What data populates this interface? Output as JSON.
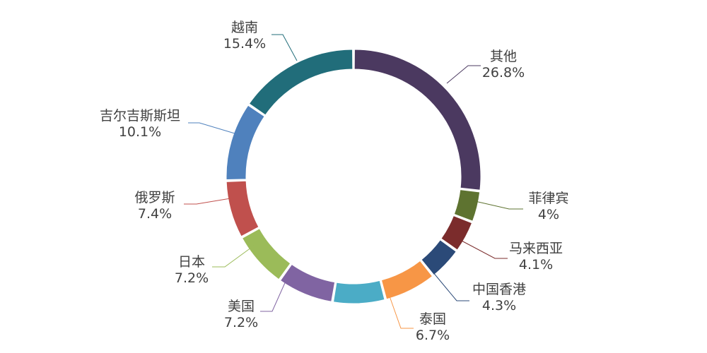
{
  "chart_data": {
    "type": "pie",
    "variant": "donut",
    "title": "",
    "legend": "none",
    "data_labels": "outside-with-leader-lines",
    "slices": [
      {
        "name": "其他",
        "value": 26.8,
        "label": "26.8%",
        "color": "#4b3960"
      },
      {
        "name": "菲律宾",
        "value": 4.0,
        "label": "4%",
        "color": "#5e7330"
      },
      {
        "name": "马来西亚",
        "value": 4.1,
        "label": "4.1%",
        "color": "#7b2c2c"
      },
      {
        "name": "中国香港",
        "value": 4.3,
        "label": "4.3%",
        "color": "#2b4a78"
      },
      {
        "name": "泰国",
        "value": 6.7,
        "label": "6.7%",
        "color": "#f79646"
      },
      {
        "name": "",
        "value": 6.7,
        "label": "",
        "color": "#4bacc6"
      },
      {
        "name": "美国",
        "value": 7.2,
        "label": "7.2%",
        "color": "#8064a2"
      },
      {
        "name": "日本",
        "value": 7.2,
        "label": "7.2%",
        "color": "#9bbb59"
      },
      {
        "name": "俄罗斯",
        "value": 7.4,
        "label": "7.4%",
        "color": "#c0504d"
      },
      {
        "name": "吉尔吉斯斯坦",
        "value": 10.1,
        "label": "10.1%",
        "color": "#4f81bd"
      },
      {
        "name": "越南",
        "value": 15.4,
        "label": "15.4%",
        "color": "#216d7a"
      }
    ]
  }
}
